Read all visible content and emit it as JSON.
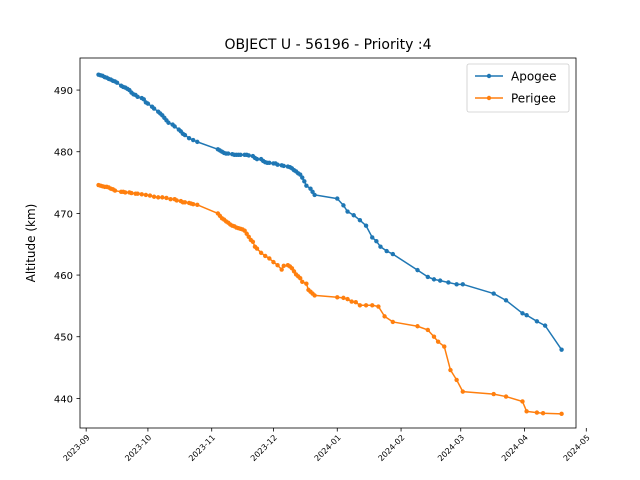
{
  "chart_data": {
    "type": "line",
    "title": "OBJECT U - 56196 - Priority :4",
    "xlabel": "",
    "ylabel": "Altitude (km)",
    "xlim": [
      "2023-08-29",
      "2024-04-26"
    ],
    "ylim": [
      435.2,
      495.2
    ],
    "x_ticks": [
      "2023-09-01",
      "2023-10-01",
      "2023-11-01",
      "2023-12-01",
      "2024-01-01",
      "2024-02-01",
      "2024-03-01",
      "2024-04-01",
      "2024-05-01"
    ],
    "x_tick_labels": [
      "2023-09",
      "2023-10",
      "2023-11",
      "2023-12",
      "2024-01",
      "2024-02",
      "2024-03",
      "2024-04",
      "2024-05"
    ],
    "y_ticks": [
      440,
      450,
      460,
      470,
      480,
      490
    ],
    "y_tick_labels": [
      "440",
      "450",
      "460",
      "470",
      "480",
      "490"
    ],
    "grid": false,
    "legend_position": "upper right",
    "series": [
      {
        "name": "Apogee",
        "color": "#1f77b4",
        "x": [
          "2023-09-07",
          "2023-09-08",
          "2023-09-09",
          "2023-09-10",
          "2023-09-11",
          "2023-09-12",
          "2023-09-13",
          "2023-09-14",
          "2023-09-15",
          "2023-09-16",
          "2023-09-18",
          "2023-09-19",
          "2023-09-20",
          "2023-09-21",
          "2023-09-22",
          "2023-09-23",
          "2023-09-24",
          "2023-09-25",
          "2023-09-26",
          "2023-09-28",
          "2023-09-29",
          "2023-09-30",
          "2023-10-01",
          "2023-10-03",
          "2023-10-04",
          "2023-10-06",
          "2023-10-07",
          "2023-10-08",
          "2023-10-09",
          "2023-10-10",
          "2023-10-11",
          "2023-10-13",
          "2023-10-14",
          "2023-10-16",
          "2023-10-17",
          "2023-10-18",
          "2023-10-19",
          "2023-10-21",
          "2023-10-23",
          "2023-10-25",
          "2023-11-04",
          "2023-11-05",
          "2023-11-06",
          "2023-11-07",
          "2023-11-08",
          "2023-11-09",
          "2023-11-11",
          "2023-11-12",
          "2023-11-13",
          "2023-11-14",
          "2023-11-15",
          "2023-11-17",
          "2023-11-18",
          "2023-11-19",
          "2023-11-21",
          "2023-11-22",
          "2023-11-23",
          "2023-11-25",
          "2023-11-26",
          "2023-11-27",
          "2023-11-28",
          "2023-11-29",
          "2023-12-01",
          "2023-12-02",
          "2023-12-03",
          "2023-12-05",
          "2023-12-06",
          "2023-12-08",
          "2023-12-09",
          "2023-12-10",
          "2023-12-11",
          "2023-12-12",
          "2023-12-13",
          "2023-12-14",
          "2023-12-15",
          "2023-12-16",
          "2023-12-17",
          "2023-12-19",
          "2023-12-20",
          "2023-12-21",
          "2024-01-01",
          "2024-01-04",
          "2024-01-06",
          "2024-01-09",
          "2024-01-12",
          "2024-01-15",
          "2024-01-18",
          "2024-01-20",
          "2024-01-22",
          "2024-01-25",
          "2024-01-28",
          "2024-02-09",
          "2024-02-14",
          "2024-02-17",
          "2024-02-20",
          "2024-02-24",
          "2024-02-28",
          "2024-03-02",
          "2024-03-17",
          "2024-03-23",
          "2024-03-31",
          "2024-04-02",
          "2024-04-07",
          "2024-04-11",
          "2024-04-19"
        ],
        "y": [
          492.5,
          492.4,
          492.3,
          492.1,
          492.0,
          491.8,
          491.7,
          491.5,
          491.4,
          491.2,
          490.7,
          490.5,
          490.4,
          490.2,
          490.0,
          489.6,
          489.3,
          489.2,
          488.9,
          488.7,
          488.5,
          488.0,
          487.8,
          487.3,
          487.0,
          486.5,
          486.2,
          485.9,
          485.5,
          485.1,
          484.7,
          484.4,
          484.1,
          483.6,
          483.3,
          482.9,
          482.7,
          482.2,
          481.9,
          481.6,
          480.4,
          480.2,
          480.0,
          479.8,
          479.7,
          479.7,
          479.6,
          479.5,
          479.5,
          479.5,
          479.5,
          479.5,
          479.5,
          479.4,
          479.3,
          479.0,
          478.8,
          478.8,
          478.5,
          478.3,
          478.2,
          478.2,
          478.1,
          478.1,
          477.9,
          477.8,
          477.7,
          477.6,
          477.5,
          477.3,
          477.0,
          476.8,
          476.5,
          476.3,
          475.8,
          475.2,
          474.5,
          474.0,
          473.5,
          473.0,
          472.4,
          471.3,
          470.3,
          469.7,
          468.9,
          468.0,
          466.1,
          465.5,
          464.6,
          463.9,
          463.4,
          460.8,
          459.7,
          459.3,
          459.1,
          458.8,
          458.5,
          458.5,
          457.0,
          455.9,
          453.8,
          453.5,
          452.5,
          451.8,
          447.9
        ]
      },
      {
        "name": "Perigee",
        "color": "#ff7f0e",
        "x": [
          "2023-09-07",
          "2023-09-08",
          "2023-09-09",
          "2023-09-10",
          "2023-09-11",
          "2023-09-12",
          "2023-09-13",
          "2023-09-14",
          "2023-09-15",
          "2023-09-18",
          "2023-09-19",
          "2023-09-20",
          "2023-09-22",
          "2023-09-23",
          "2023-09-25",
          "2023-09-26",
          "2023-09-28",
          "2023-09-30",
          "2023-10-02",
          "2023-10-04",
          "2023-10-06",
          "2023-10-08",
          "2023-10-10",
          "2023-10-12",
          "2023-10-14",
          "2023-10-15",
          "2023-10-17",
          "2023-10-18",
          "2023-10-19",
          "2023-10-21",
          "2023-10-22",
          "2023-10-23",
          "2023-10-25",
          "2023-11-04",
          "2023-11-05",
          "2023-11-06",
          "2023-11-07",
          "2023-11-08",
          "2023-11-09",
          "2023-11-10",
          "2023-11-11",
          "2023-11-12",
          "2023-11-13",
          "2023-11-14",
          "2023-11-15",
          "2023-11-16",
          "2023-11-17",
          "2023-11-18",
          "2023-11-19",
          "2023-11-20",
          "2023-11-21",
          "2023-11-22",
          "2023-11-23",
          "2023-11-25",
          "2023-11-27",
          "2023-11-29",
          "2023-12-01",
          "2023-12-03",
          "2023-12-05",
          "2023-12-06",
          "2023-12-08",
          "2023-12-09",
          "2023-12-10",
          "2023-12-11",
          "2023-12-12",
          "2023-12-13",
          "2023-12-14",
          "2023-12-15",
          "2023-12-17",
          "2023-12-18",
          "2023-12-19",
          "2023-12-20",
          "2023-12-21",
          "2024-01-01",
          "2024-01-04",
          "2024-01-06",
          "2024-01-08",
          "2024-01-10",
          "2024-01-12",
          "2024-01-15",
          "2024-01-18",
          "2024-01-21",
          "2024-01-24",
          "2024-01-28",
          "2024-02-09",
          "2024-02-14",
          "2024-02-17",
          "2024-02-19",
          "2024-02-22",
          "2024-02-25",
          "2024-02-28",
          "2024-03-02",
          "2024-03-17",
          "2024-03-23",
          "2024-03-31",
          "2024-04-02",
          "2024-04-07",
          "2024-04-10",
          "2024-04-19"
        ],
        "y": [
          474.6,
          474.5,
          474.4,
          474.3,
          474.3,
          474.2,
          474.0,
          473.9,
          473.7,
          473.5,
          473.5,
          473.4,
          473.4,
          473.3,
          473.2,
          473.2,
          473.1,
          473.0,
          472.9,
          472.7,
          472.6,
          472.6,
          472.5,
          472.3,
          472.3,
          472.1,
          472.0,
          471.8,
          471.8,
          471.7,
          471.6,
          471.5,
          471.4,
          470.0,
          469.6,
          469.2,
          469.0,
          468.7,
          468.5,
          468.2,
          468.0,
          467.9,
          467.7,
          467.6,
          467.5,
          467.4,
          467.2,
          466.7,
          466.2,
          465.7,
          465.4,
          464.6,
          464.3,
          463.6,
          463.1,
          462.7,
          462.1,
          461.6,
          460.9,
          461.5,
          461.6,
          461.4,
          461.1,
          460.6,
          460.1,
          459.8,
          459.5,
          458.9,
          458.6,
          457.6,
          457.3,
          457.0,
          456.7,
          456.4,
          456.3,
          456.1,
          455.7,
          455.6,
          455.1,
          455.1,
          455.1,
          454.9,
          453.3,
          452.4,
          451.7,
          451.1,
          450.0,
          449.2,
          448.4,
          444.6,
          443.0,
          441.1,
          440.7,
          440.3,
          439.5,
          437.9,
          437.7,
          437.6,
          437.5
        ]
      }
    ]
  }
}
